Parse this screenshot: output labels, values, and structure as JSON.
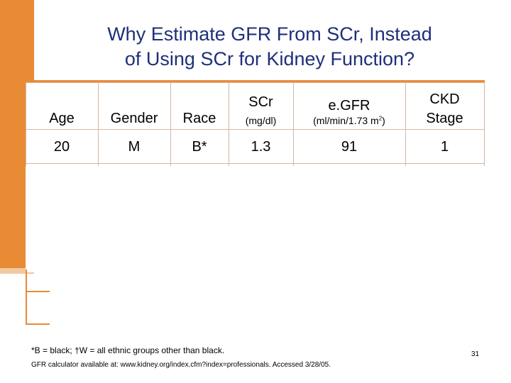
{
  "slide": {
    "title_line1": "Why Estimate GFR From SCr, Instead",
    "title_line2": "of Using SCr for Kidney Function?",
    "page_number": "31"
  },
  "table": {
    "headers": {
      "age": "Age",
      "gender": "Gender",
      "race": "Race",
      "scr": "SCr",
      "scr_unit": "(mg/dl)",
      "egfr": "e.GFR",
      "egfr_unit_prefix": "(ml/min/1.73 m",
      "egfr_unit_sup": "2",
      "egfr_unit_suffix": ")",
      "ckd_line1": "CKD",
      "ckd_line2": "Stage"
    },
    "row": {
      "age": "20",
      "gender": "M",
      "race": "B*",
      "scr": "1.3",
      "egfr": "91",
      "ckd": "1"
    }
  },
  "footer": {
    "footnote": "*B = black; †W = all ethnic groups other than black.",
    "source": "GFR calculator available at: www.kidney.org/index.cfm?index=professionals. Accessed 3/28/05."
  },
  "colors": {
    "accent": "#e98a35",
    "title": "#1f2f7a",
    "grid": "#d7b6a0"
  }
}
